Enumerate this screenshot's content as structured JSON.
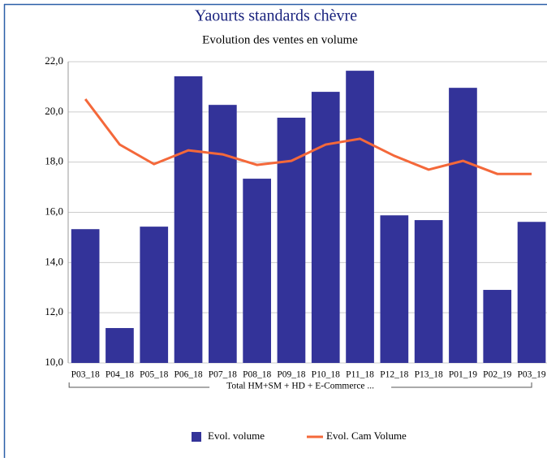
{
  "chart_data": {
    "type": "bar",
    "title": "Yaourts standards chèvre",
    "subtitle": "Evolution des ventes en volume",
    "categories": [
      "P03_18",
      "P04_18",
      "P05_18",
      "P06_18",
      "P07_18",
      "P08_18",
      "P09_18",
      "P10_18",
      "P11_18",
      "P12_18",
      "P13_18",
      "P01_19",
      "P02_19",
      "P03_19"
    ],
    "group_label": "Total HM+SM + HD + E-Commerce ...",
    "series": [
      {
        "name": "Evol. volume",
        "type": "bar",
        "color": "#333399",
        "values": [
          15.33,
          11.39,
          15.43,
          21.42,
          20.28,
          17.34,
          19.77,
          20.8,
          21.64,
          15.88,
          15.69,
          20.96,
          12.91,
          15.62
        ]
      },
      {
        "name": "Evol. Cam Volume",
        "type": "line",
        "color": "#f4683a",
        "values": [
          20.51,
          18.7,
          17.92,
          18.47,
          18.31,
          17.89,
          18.05,
          18.7,
          18.93,
          18.25,
          17.7,
          18.05,
          17.53,
          17.53
        ]
      }
    ],
    "ylim": [
      10,
      22
    ],
    "yticks": [
      {
        "value": 10,
        "label": "10,0"
      },
      {
        "value": 12,
        "label": "12,0"
      },
      {
        "value": 14,
        "label": "14,0"
      },
      {
        "value": 16,
        "label": "16,0"
      },
      {
        "value": 18,
        "label": "18,0"
      },
      {
        "value": 20,
        "label": "20,0"
      },
      {
        "value": 22,
        "label": "22,0"
      }
    ],
    "grid": true,
    "legend": "bottom"
  }
}
